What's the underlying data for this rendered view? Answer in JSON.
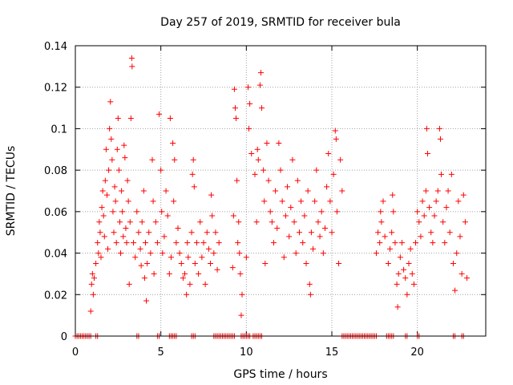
{
  "chart_data": {
    "type": "scatter",
    "title": "Day 257 of 2019, SRMTID for receiver bula",
    "xlabel": "GPS time / hours",
    "ylabel": "SRMTID / TECUs",
    "xlim": [
      0,
      24
    ],
    "ylim": [
      0,
      0.14
    ],
    "xticks": [
      0,
      5,
      10,
      15,
      20
    ],
    "yticks": [
      0,
      0.02,
      0.04,
      0.06,
      0.08,
      0.1,
      0.12,
      0.14
    ],
    "xtick_labels": [
      "0",
      "5",
      "10",
      "15",
      "20"
    ],
    "ytick_labels": [
      "0",
      "0.02",
      "0.04",
      "0.06",
      "0.08",
      "0.1",
      "0.12",
      "0.14"
    ],
    "grid": true,
    "marker": "+",
    "series": [
      {
        "name": "SRMTID",
        "color": "#ff0000",
        "points": [
          [
            0.9,
            0.012
          ],
          [
            0.95,
            0.025
          ],
          [
            1.0,
            0.03
          ],
          [
            1.05,
            0.02
          ],
          [
            1.1,
            0.028
          ],
          [
            1.2,
            0.035
          ],
          [
            1.3,
            0.045
          ],
          [
            1.35,
            0.04
          ],
          [
            1.4,
            0.055
          ],
          [
            1.45,
            0.05
          ],
          [
            1.5,
            0.038
          ],
          [
            1.55,
            0.062
          ],
          [
            1.6,
            0.07
          ],
          [
            1.65,
            0.058
          ],
          [
            1.7,
            0.048
          ],
          [
            1.75,
            0.075
          ],
          [
            1.8,
            0.09
          ],
          [
            1.85,
            0.068
          ],
          [
            1.9,
            0.042
          ],
          [
            1.95,
            0.08
          ],
          [
            2.0,
            0.1
          ],
          [
            2.05,
            0.113
          ],
          [
            2.1,
            0.095
          ],
          [
            2.15,
            0.085
          ],
          [
            2.2,
            0.06
          ],
          [
            2.25,
            0.05
          ],
          [
            2.3,
            0.072
          ],
          [
            2.35,
            0.065
          ],
          [
            2.4,
            0.045
          ],
          [
            2.45,
            0.09
          ],
          [
            2.5,
            0.105
          ],
          [
            2.55,
            0.08
          ],
          [
            2.6,
            0.055
          ],
          [
            2.65,
            0.04
          ],
          [
            2.7,
            0.07
          ],
          [
            2.75,
            0.06
          ],
          [
            2.8,
            0.048
          ],
          [
            2.85,
            0.092
          ],
          [
            2.9,
            0.086
          ],
          [
            2.95,
            0.052
          ],
          [
            3.0,
            0.045
          ],
          [
            3.05,
            0.075
          ],
          [
            3.1,
            0.065
          ],
          [
            3.15,
            0.025
          ],
          [
            3.2,
            0.055
          ],
          [
            3.25,
            0.105
          ],
          [
            3.3,
            0.134
          ],
          [
            3.32,
            0.13
          ],
          [
            3.4,
            0.045
          ],
          [
            3.5,
            0.038
          ],
          [
            3.6,
            0.06
          ],
          [
            3.7,
            0.05
          ],
          [
            3.8,
            0.042
          ],
          [
            3.85,
            0.034
          ],
          [
            3.9,
            0.055
          ],
          [
            4.0,
            0.07
          ],
          [
            4.05,
            0.028
          ],
          [
            4.1,
            0.045
          ],
          [
            4.15,
            0.017
          ],
          [
            4.2,
            0.035
          ],
          [
            4.3,
            0.05
          ],
          [
            4.4,
            0.04
          ],
          [
            4.5,
            0.085
          ],
          [
            4.55,
            0.065
          ],
          [
            4.6,
            0.03
          ],
          [
            4.7,
            0.055
          ],
          [
            4.8,
            0.045
          ],
          [
            4.9,
            0.107
          ],
          [
            5.0,
            0.08
          ],
          [
            5.05,
            0.06
          ],
          [
            5.1,
            0.04
          ],
          [
            5.2,
            0.048
          ],
          [
            5.3,
            0.07
          ],
          [
            5.4,
            0.058
          ],
          [
            5.5,
            0.03
          ],
          [
            5.55,
            0.105
          ],
          [
            5.6,
            0.038
          ],
          [
            5.7,
            0.093
          ],
          [
            5.75,
            0.065
          ],
          [
            5.8,
            0.085
          ],
          [
            5.9,
            0.045
          ],
          [
            6.0,
            0.052
          ],
          [
            6.1,
            0.04
          ],
          [
            6.2,
            0.035
          ],
          [
            6.3,
            0.028
          ],
          [
            6.4,
            0.03
          ],
          [
            6.5,
            0.02
          ],
          [
            6.55,
            0.045
          ],
          [
            6.6,
            0.038
          ],
          [
            6.7,
            0.025
          ],
          [
            6.8,
            0.05
          ],
          [
            6.85,
            0.078
          ],
          [
            6.9,
            0.085
          ],
          [
            6.95,
            0.072
          ],
          [
            7.0,
            0.035
          ],
          [
            7.1,
            0.045
          ],
          [
            7.2,
            0.03
          ],
          [
            7.3,
            0.055
          ],
          [
            7.4,
            0.038
          ],
          [
            7.5,
            0.045
          ],
          [
            7.6,
            0.025
          ],
          [
            7.7,
            0.05
          ],
          [
            7.8,
            0.042
          ],
          [
            7.9,
            0.035
          ],
          [
            7.95,
            0.068
          ],
          [
            8.0,
            0.058
          ],
          [
            8.1,
            0.04
          ],
          [
            8.2,
            0.05
          ],
          [
            8.3,
            0.032
          ],
          [
            8.4,
            0.045
          ],
          [
            9.2,
            0.033
          ],
          [
            9.25,
            0.058
          ],
          [
            9.3,
            0.119
          ],
          [
            9.35,
            0.11
          ],
          [
            9.4,
            0.105
          ],
          [
            9.45,
            0.075
          ],
          [
            9.5,
            0.045
          ],
          [
            9.55,
            0.055
          ],
          [
            9.6,
            0.04
          ],
          [
            9.65,
            0.03
          ],
          [
            9.7,
            0.01
          ],
          [
            9.75,
            0.02
          ],
          [
            10.0,
            0.038
          ],
          [
            10.1,
            0.12
          ],
          [
            10.15,
            0.1
          ],
          [
            10.2,
            0.112
          ],
          [
            10.3,
            0.088
          ],
          [
            10.5,
            0.078
          ],
          [
            10.6,
            0.055
          ],
          [
            10.65,
            0.09
          ],
          [
            10.7,
            0.085
          ],
          [
            10.8,
            0.121
          ],
          [
            10.85,
            0.127
          ],
          [
            10.9,
            0.11
          ],
          [
            11.0,
            0.08
          ],
          [
            11.05,
            0.065
          ],
          [
            11.1,
            0.035
          ],
          [
            11.2,
            0.093
          ],
          [
            11.3,
            0.075
          ],
          [
            11.4,
            0.06
          ],
          [
            11.5,
            0.055
          ],
          [
            11.6,
            0.045
          ],
          [
            11.7,
            0.07
          ],
          [
            11.8,
            0.052
          ],
          [
            11.9,
            0.093
          ],
          [
            12.0,
            0.08
          ],
          [
            12.1,
            0.065
          ],
          [
            12.2,
            0.038
          ],
          [
            12.3,
            0.058
          ],
          [
            12.4,
            0.072
          ],
          [
            12.5,
            0.048
          ],
          [
            12.6,
            0.062
          ],
          [
            12.7,
            0.085
          ],
          [
            12.8,
            0.055
          ],
          [
            12.9,
            0.04
          ],
          [
            13.0,
            0.075
          ],
          [
            13.1,
            0.05
          ],
          [
            13.2,
            0.065
          ],
          [
            13.3,
            0.045
          ],
          [
            13.4,
            0.058
          ],
          [
            13.5,
            0.035
          ],
          [
            13.6,
            0.07
          ],
          [
            13.7,
            0.025
          ],
          [
            13.75,
            0.02
          ],
          [
            13.8,
            0.05
          ],
          [
            13.9,
            0.042
          ],
          [
            14.0,
            0.065
          ],
          [
            14.1,
            0.08
          ],
          [
            14.2,
            0.055
          ],
          [
            14.3,
            0.048
          ],
          [
            14.4,
            0.06
          ],
          [
            14.5,
            0.04
          ],
          [
            14.6,
            0.052
          ],
          [
            14.7,
            0.072
          ],
          [
            14.8,
            0.088
          ],
          [
            14.9,
            0.065
          ],
          [
            15.0,
            0.05
          ],
          [
            15.1,
            0.078
          ],
          [
            15.2,
            0.099
          ],
          [
            15.25,
            0.095
          ],
          [
            15.3,
            0.06
          ],
          [
            15.4,
            0.035
          ],
          [
            15.5,
            0.085
          ],
          [
            15.6,
            0.07
          ],
          [
            17.6,
            0.04
          ],
          [
            17.7,
            0.05
          ],
          [
            17.8,
            0.045
          ],
          [
            17.85,
            0.06
          ],
          [
            17.9,
            0.055
          ],
          [
            18.0,
            0.065
          ],
          [
            18.1,
            0.048
          ],
          [
            18.3,
            0.035
          ],
          [
            18.4,
            0.042
          ],
          [
            18.5,
            0.05
          ],
          [
            18.55,
            0.068
          ],
          [
            18.6,
            0.06
          ],
          [
            18.7,
            0.045
          ],
          [
            18.8,
            0.025
          ],
          [
            18.85,
            0.014
          ],
          [
            18.9,
            0.03
          ],
          [
            19.0,
            0.038
          ],
          [
            19.1,
            0.045
          ],
          [
            19.2,
            0.032
          ],
          [
            19.3,
            0.028
          ],
          [
            19.4,
            0.02
          ],
          [
            19.5,
            0.035
          ],
          [
            19.6,
            0.042
          ],
          [
            19.7,
            0.03
          ],
          [
            19.8,
            0.025
          ],
          [
            19.9,
            0.045
          ],
          [
            20.0,
            0.06
          ],
          [
            20.1,
            0.055
          ],
          [
            20.2,
            0.048
          ],
          [
            20.3,
            0.065
          ],
          [
            20.4,
            0.058
          ],
          [
            20.5,
            0.07
          ],
          [
            20.55,
            0.1
          ],
          [
            20.6,
            0.088
          ],
          [
            20.7,
            0.062
          ],
          [
            20.8,
            0.05
          ],
          [
            20.9,
            0.045
          ],
          [
            21.0,
            0.058
          ],
          [
            21.1,
            0.065
          ],
          [
            21.2,
            0.07
          ],
          [
            21.3,
            0.1
          ],
          [
            21.35,
            0.095
          ],
          [
            21.4,
            0.078
          ],
          [
            21.5,
            0.055
          ],
          [
            21.6,
            0.045
          ],
          [
            21.7,
            0.062
          ],
          [
            21.8,
            0.07
          ],
          [
            21.9,
            0.05
          ],
          [
            22.0,
            0.078
          ],
          [
            22.1,
            0.035
          ],
          [
            22.2,
            0.022
          ],
          [
            22.3,
            0.04
          ],
          [
            22.4,
            0.065
          ],
          [
            22.5,
            0.048
          ],
          [
            22.6,
            0.03
          ],
          [
            22.7,
            0.068
          ],
          [
            22.8,
            0.055
          ],
          [
            22.9,
            0.028
          ]
        ]
      },
      {
        "name": "zero-level",
        "color": "#ff0000",
        "x_ranges": [
          [
            0.0,
            0.9
          ],
          [
            1.2,
            1.3
          ],
          [
            3.6,
            3.7
          ],
          [
            4.8,
            4.9
          ],
          [
            5.5,
            5.9
          ],
          [
            6.8,
            7.0
          ],
          [
            8.1,
            9.3
          ],
          [
            9.7,
            10.2
          ],
          [
            10.4,
            10.9
          ],
          [
            15.6,
            17.6
          ],
          [
            18.2,
            18.6
          ],
          [
            19.3,
            19.4
          ],
          [
            20.0,
            20.1
          ],
          [
            22.1,
            22.2
          ],
          [
            22.6,
            22.7
          ]
        ],
        "y": 0
      }
    ]
  }
}
